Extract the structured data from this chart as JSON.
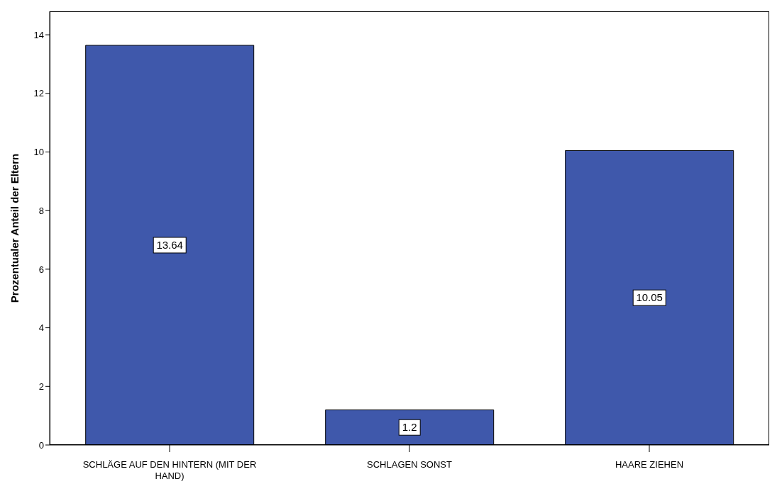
{
  "chart_data": {
    "type": "bar",
    "ylabel": "Prozentualer Anteil der Eltern",
    "categories": [
      "SCHLÄGE AUF DEN HINTERN (MIT DER HAND)",
      "SCHLAGEN SONST",
      "HAARE ZIEHEN"
    ],
    "values": [
      13.64,
      1.2,
      10.05
    ],
    "color": "#3f58ab",
    "ylim": [
      0,
      14.8
    ],
    "yticks": [
      0,
      2,
      4,
      6,
      8,
      10,
      12,
      14
    ],
    "grid": false,
    "data_labels": true
  }
}
